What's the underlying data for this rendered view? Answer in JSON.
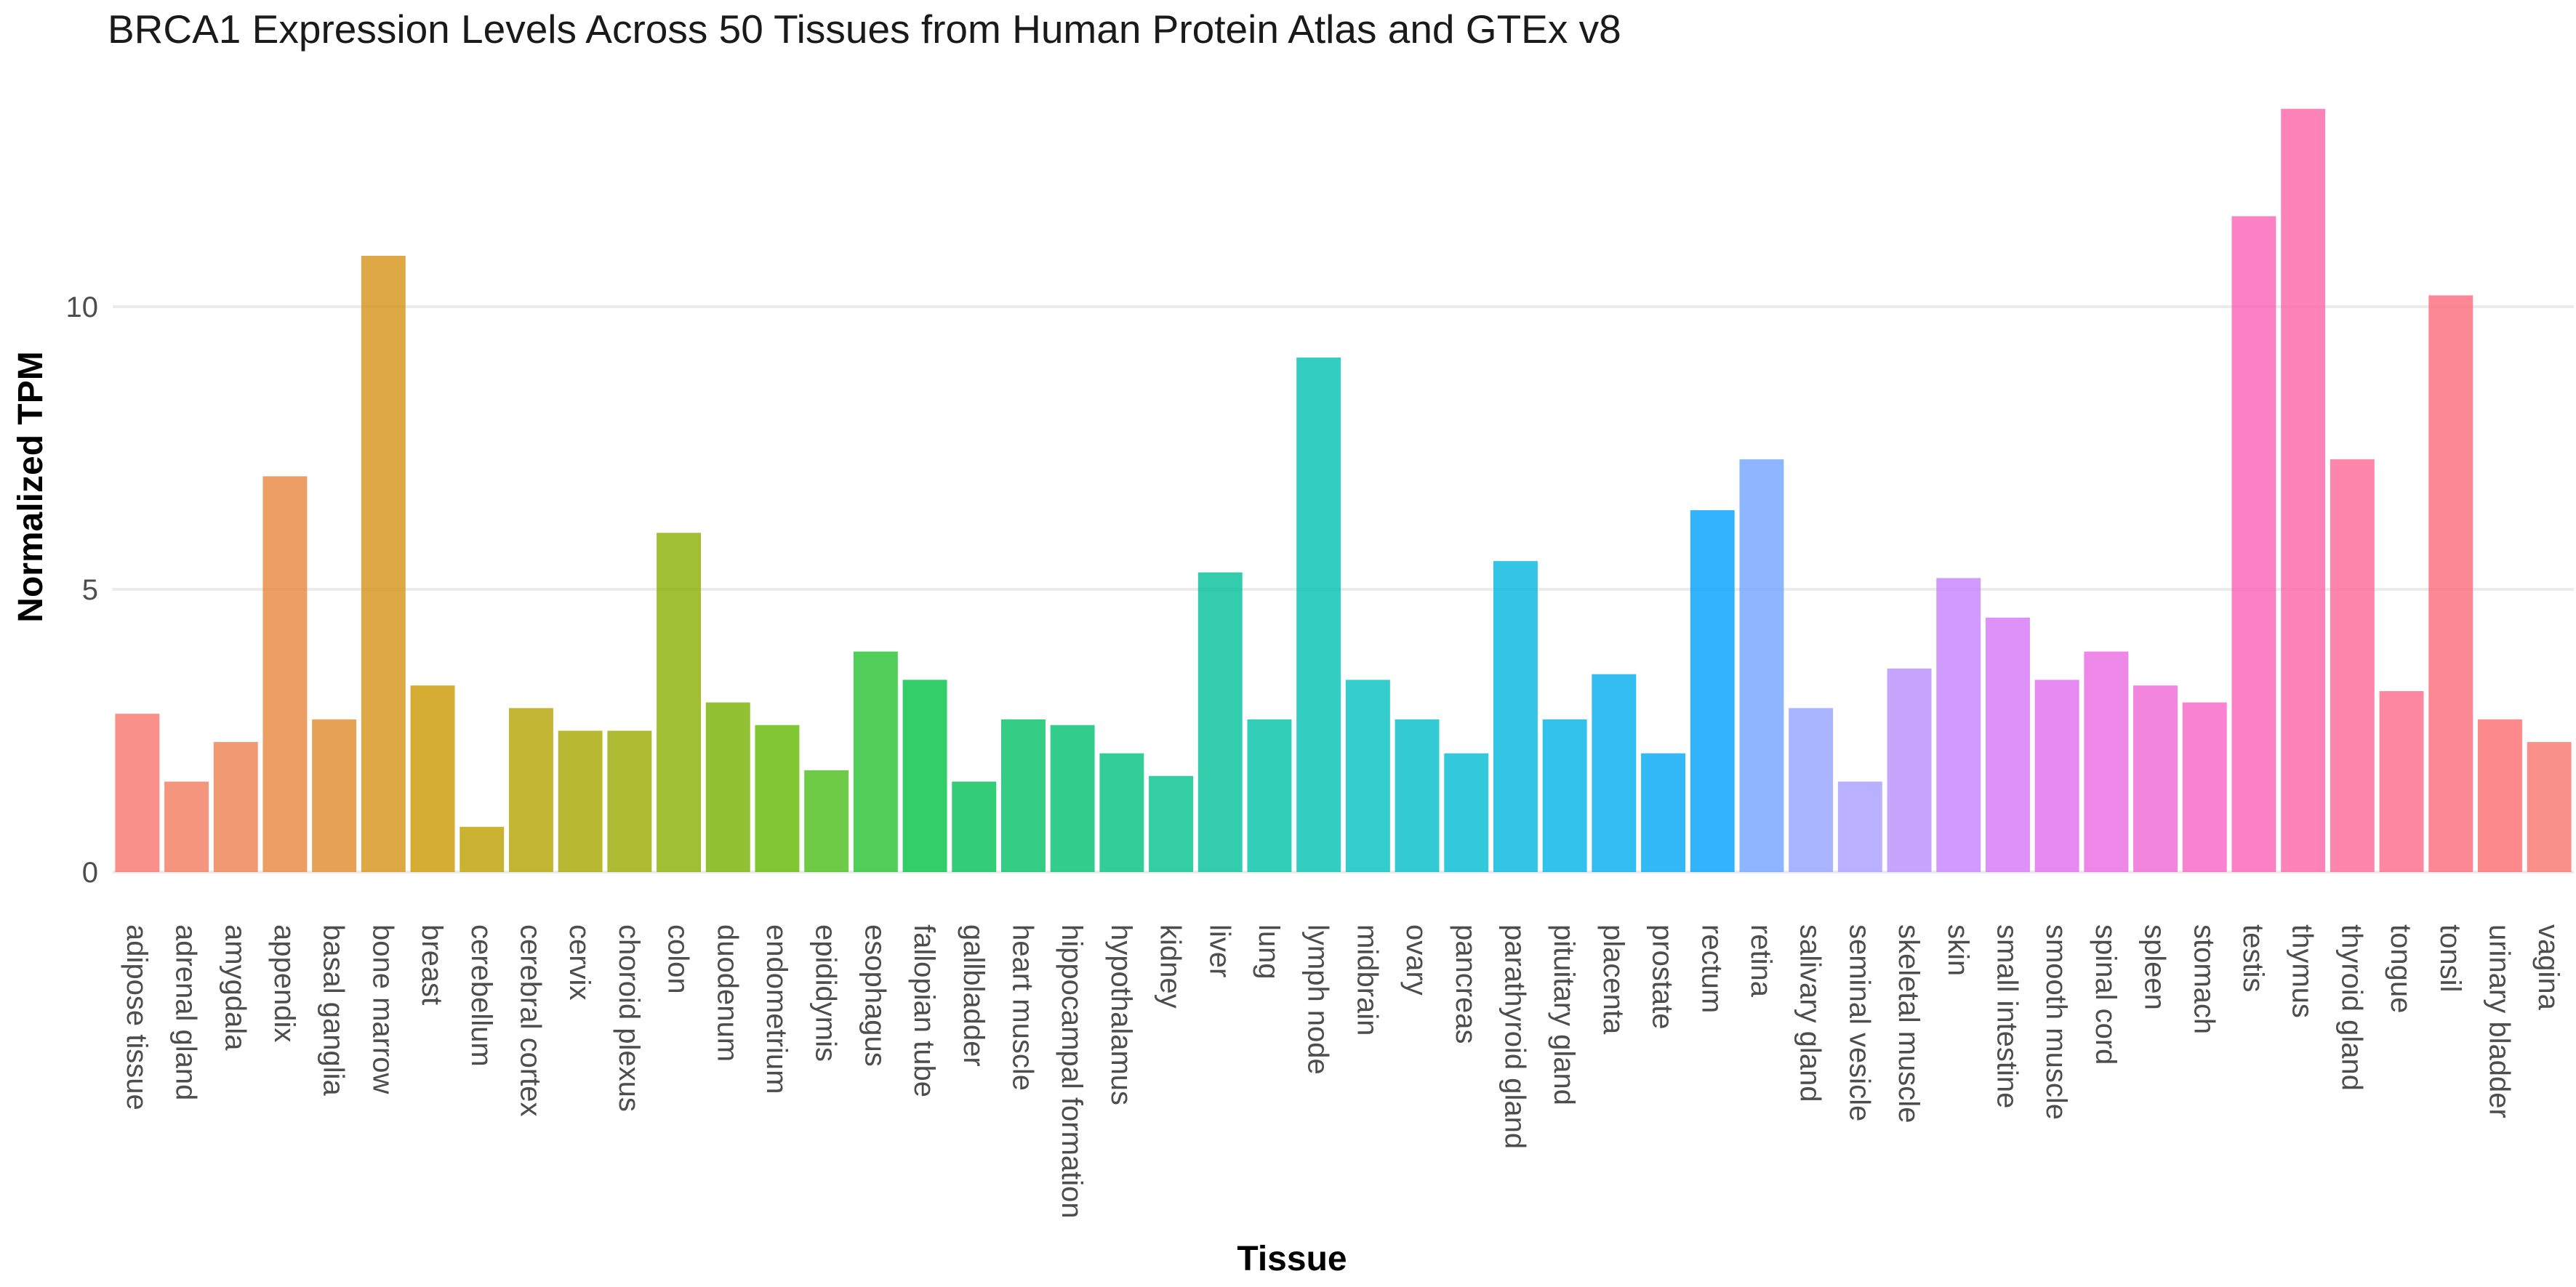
{
  "chart_data": {
    "type": "bar",
    "title": "BRCA1 Expression Levels Across 50 Tissues from Human Protein Atlas and GTEx v8",
    "xlabel": "Tissue",
    "ylabel": "Normalized TPM",
    "ylim": [
      0,
      14
    ],
    "yticks": [
      0,
      5,
      10
    ],
    "grid": true,
    "legend": "none",
    "categories": [
      "adipose tissue",
      "adrenal gland",
      "amygdala",
      "appendix",
      "basal ganglia",
      "bone marrow",
      "breast",
      "cerebellum",
      "cerebral cortex",
      "cervix",
      "choroid plexus",
      "colon",
      "duodenum",
      "endometrium",
      "epididymis",
      "esophagus",
      "fallopian tube",
      "gallbladder",
      "heart muscle",
      "hippocampal formation",
      "hypothalamus",
      "kidney",
      "liver",
      "lung",
      "lymph node",
      "midbrain",
      "ovary",
      "pancreas",
      "parathyroid gland",
      "pituitary gland",
      "placenta",
      "prostate",
      "rectum",
      "retina",
      "salivary gland",
      "seminal vesicle",
      "skeletal muscle",
      "skin",
      "small intestine",
      "smooth muscle",
      "spinal cord",
      "spleen",
      "stomach",
      "testis",
      "thymus",
      "thyroid gland",
      "tongue",
      "tonsil",
      "urinary bladder",
      "vagina"
    ],
    "values": [
      2.8,
      1.6,
      2.3,
      7.0,
      2.7,
      10.9,
      3.3,
      0.8,
      2.9,
      2.5,
      2.5,
      6.0,
      3.0,
      2.6,
      1.8,
      3.9,
      3.4,
      1.6,
      2.7,
      2.6,
      2.1,
      1.7,
      5.3,
      2.7,
      9.1,
      3.4,
      2.7,
      2.1,
      5.5,
      2.7,
      3.5,
      2.1,
      6.4,
      7.3,
      2.9,
      1.6,
      3.6,
      5.2,
      4.5,
      3.4,
      3.9,
      3.3,
      3.0,
      11.6,
      13.5,
      7.3,
      3.2,
      10.2,
      2.7,
      2.3
    ],
    "colors": [
      "#F8766D",
      "#F47A5E",
      "#EE8050",
      "#E7863F",
      "#E08B2A",
      "#D69216",
      "#CA9900",
      "#BD9F00",
      "#B2A300",
      "#A6A700",
      "#98AB00",
      "#88AF00",
      "#77B300",
      "#62B900",
      "#49BE17",
      "#24C230",
      "#00C144",
      "#00C155",
      "#00C164",
      "#00C272",
      "#00C180",
      "#00C28D",
      "#00C19A",
      "#00C2A6",
      "#00C2B2",
      "#00C0BE",
      "#00BDC8",
      "#00BAD2",
      "#00B7DC",
      "#00B3E6",
      "#00ADEE",
      "#00A7F6",
      "#009FFD",
      "#72A4FF",
      "#93A4FF",
      "#A79EFF",
      "#B98FFF",
      "#C682FE",
      "#D675F6",
      "#E06DED",
      "#E86AE2",
      "#EF67D4",
      "#F564C6",
      "#FA62B6",
      "#FC64A6",
      "#FE6697",
      "#FD6888",
      "#FC6A7B",
      "#FB6D70",
      "#F8766D"
    ]
  }
}
